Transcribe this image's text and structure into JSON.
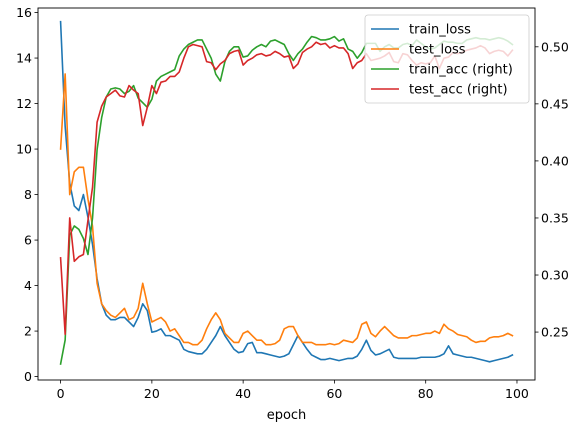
{
  "chart_data": {
    "type": "line",
    "title": "",
    "xlabel": "epoch",
    "ylabel": "",
    "ylabel_right": "",
    "xlim": [
      -4.95,
      103.95
    ],
    "ylim": [
      -0.15,
      16.2
    ],
    "ylim_right": [
      0.208,
      0.534
    ],
    "xticks": [
      0,
      20,
      40,
      60,
      80,
      100
    ],
    "yticks": [
      0,
      2,
      4,
      6,
      8,
      10,
      12,
      14,
      16
    ],
    "yticks_right": [
      0.25,
      0.3,
      0.35,
      0.4,
      0.45,
      0.5
    ],
    "grid": false,
    "legend_position": "top-right",
    "colors": {
      "train_loss": "#1f77b4",
      "test_loss": "#ff7f0e",
      "train_acc": "#2ca02c",
      "test_acc": "#d62728"
    },
    "x": [
      0,
      1,
      2,
      3,
      4,
      5,
      6,
      7,
      8,
      9,
      10,
      11,
      12,
      13,
      14,
      15,
      16,
      17,
      18,
      19,
      20,
      21,
      22,
      23,
      24,
      25,
      26,
      27,
      28,
      29,
      30,
      31,
      32,
      33,
      34,
      35,
      36,
      37,
      38,
      39,
      40,
      41,
      42,
      43,
      44,
      45,
      46,
      47,
      48,
      49,
      50,
      51,
      52,
      53,
      54,
      55,
      56,
      57,
      58,
      59,
      60,
      61,
      62,
      63,
      64,
      65,
      66,
      67,
      68,
      69,
      70,
      71,
      72,
      73,
      74,
      75,
      76,
      77,
      78,
      79,
      80,
      81,
      82,
      83,
      84,
      85,
      86,
      87,
      88,
      89,
      90,
      91,
      92,
      93,
      94,
      95,
      96,
      97,
      98,
      99
    ],
    "series": [
      {
        "name": "train_loss",
        "axis": "left",
        "values": [
          15.6,
          11.0,
          8.5,
          7.5,
          7.3,
          8.0,
          7.0,
          5.8,
          4.3,
          3.2,
          2.7,
          2.5,
          2.5,
          2.6,
          2.6,
          2.4,
          2.2,
          2.6,
          3.2,
          2.9,
          1.95,
          2.0,
          2.1,
          1.8,
          1.8,
          1.7,
          1.6,
          1.2,
          1.1,
          1.05,
          1.0,
          1.0,
          1.2,
          1.5,
          1.8,
          2.2,
          1.8,
          1.5,
          1.2,
          1.05,
          1.1,
          1.45,
          1.5,
          1.05,
          1.05,
          1.0,
          0.95,
          0.9,
          0.85,
          0.9,
          1.0,
          1.4,
          1.8,
          1.5,
          1.2,
          0.95,
          0.85,
          0.75,
          0.75,
          0.8,
          0.75,
          0.7,
          0.75,
          0.8,
          0.8,
          0.9,
          1.2,
          1.6,
          1.15,
          0.95,
          1.0,
          1.1,
          1.2,
          0.85,
          0.8,
          0.8,
          0.8,
          0.8,
          0.8,
          0.85,
          0.85,
          0.85,
          0.85,
          0.9,
          1.0,
          1.35,
          1.0,
          0.95,
          0.9,
          0.85,
          0.85,
          0.8,
          0.75,
          0.7,
          0.65,
          0.7,
          0.75,
          0.8,
          0.85,
          0.95
        ]
      },
      {
        "name": "test_loss",
        "axis": "left",
        "values": [
          10.0,
          13.3,
          8.0,
          9.0,
          9.2,
          9.2,
          7.8,
          6.6,
          4.1,
          3.2,
          2.9,
          2.7,
          2.6,
          2.8,
          3.0,
          2.5,
          2.6,
          3.0,
          4.1,
          3.2,
          2.4,
          2.5,
          2.6,
          2.4,
          2.0,
          2.1,
          1.8,
          1.5,
          1.5,
          1.4,
          1.4,
          1.6,
          2.1,
          2.5,
          2.8,
          2.5,
          1.9,
          1.7,
          1.5,
          1.5,
          1.9,
          2.0,
          1.8,
          1.6,
          1.6,
          1.4,
          1.4,
          1.45,
          1.6,
          2.1,
          2.2,
          2.2,
          1.8,
          1.5,
          1.5,
          1.5,
          1.4,
          1.4,
          1.4,
          1.45,
          1.4,
          1.45,
          1.6,
          1.55,
          1.5,
          1.7,
          2.3,
          2.4,
          1.9,
          1.75,
          2.0,
          2.2,
          2.0,
          1.8,
          1.7,
          1.7,
          1.7,
          1.8,
          1.8,
          1.85,
          1.9,
          1.9,
          2.0,
          1.9,
          2.3,
          2.1,
          2.0,
          1.85,
          1.8,
          1.75,
          1.6,
          1.5,
          1.55,
          1.55,
          1.7,
          1.75,
          1.75,
          1.8,
          1.9,
          1.8
        ]
      },
      {
        "name": "train_acc (right)",
        "axis": "right",
        "values": [
          0.222,
          0.243,
          0.335,
          0.343,
          0.34,
          0.332,
          0.318,
          0.35,
          0.41,
          0.438,
          0.456,
          0.463,
          0.464,
          0.463,
          0.459,
          0.461,
          0.466,
          0.455,
          0.451,
          0.447,
          0.454,
          0.47,
          0.474,
          0.476,
          0.478,
          0.48,
          0.492,
          0.498,
          0.502,
          0.504,
          0.506,
          0.506,
          0.498,
          0.49,
          0.476,
          0.47,
          0.487,
          0.496,
          0.5,
          0.5,
          0.491,
          0.492,
          0.497,
          0.5,
          0.502,
          0.5,
          0.505,
          0.506,
          0.504,
          0.502,
          0.494,
          0.488,
          0.494,
          0.498,
          0.504,
          0.509,
          0.508,
          0.506,
          0.506,
          0.507,
          0.509,
          0.505,
          0.507,
          0.498,
          0.496,
          0.49,
          0.495,
          0.503,
          0.503,
          0.503,
          0.496,
          0.5,
          0.502,
          0.499,
          0.499,
          0.502,
          0.503,
          0.501,
          0.506,
          0.503,
          0.5,
          0.498,
          0.499,
          0.502,
          0.505,
          0.504,
          0.504,
          0.503,
          0.503,
          0.506,
          0.507,
          0.508,
          0.507,
          0.507,
          0.506,
          0.507,
          0.508,
          0.507,
          0.505,
          0.502
        ]
      },
      {
        "name": "test_acc (right)",
        "axis": "right",
        "values": [
          0.315,
          0.248,
          0.35,
          0.312,
          0.316,
          0.318,
          0.348,
          0.377,
          0.434,
          0.448,
          0.456,
          0.459,
          0.462,
          0.457,
          0.456,
          0.466,
          0.462,
          0.459,
          0.431,
          0.447,
          0.466,
          0.459,
          0.469,
          0.47,
          0.474,
          0.474,
          0.478,
          0.49,
          0.5,
          0.502,
          0.501,
          0.5,
          0.487,
          0.486,
          0.48,
          0.485,
          0.488,
          0.494,
          0.496,
          0.497,
          0.484,
          0.488,
          0.49,
          0.493,
          0.494,
          0.492,
          0.493,
          0.496,
          0.494,
          0.491,
          0.492,
          0.481,
          0.485,
          0.495,
          0.498,
          0.5,
          0.504,
          0.502,
          0.503,
          0.499,
          0.501,
          0.499,
          0.499,
          0.494,
          0.481,
          0.486,
          0.488,
          0.494,
          0.488,
          0.489,
          0.49,
          0.492,
          0.495,
          0.487,
          0.486,
          0.494,
          0.493,
          0.488,
          0.484,
          0.486,
          0.485,
          0.486,
          0.492,
          0.481,
          0.49,
          0.491,
          0.495,
          0.494,
          0.495,
          0.497,
          0.498,
          0.499,
          0.501,
          0.499,
          0.494,
          0.496,
          0.497,
          0.496,
          0.492,
          0.497
        ]
      }
    ]
  }
}
